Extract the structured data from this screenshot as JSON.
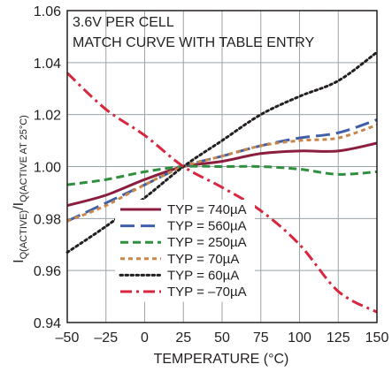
{
  "chart_data": {
    "type": "line",
    "title": "",
    "xlabel": "TEMPERATURE (°C)",
    "ylabel": "I",
    "ylabel_subscript_parts": [
      "Q(ACTIVE)",
      "/I",
      "Q(ACTIVE AT 25°C)"
    ],
    "annotations": [
      "3.6V PER CELL",
      "MATCH CURVE WITH TABLE ENTRY"
    ],
    "xlim": [
      -50,
      150
    ],
    "ylim": [
      0.94,
      1.06
    ],
    "x_ticks": [
      -50,
      -25,
      0,
      25,
      50,
      75,
      100,
      125,
      150
    ],
    "x_tick_labels": [
      "–50",
      "–25",
      "0",
      "25",
      "50",
      "75",
      "100",
      "125",
      "150"
    ],
    "y_ticks": [
      0.94,
      0.96,
      0.98,
      1.0,
      1.02,
      1.04,
      1.06
    ],
    "y_tick_labels": [
      "0.94",
      "0.96",
      "0.98",
      "1.00",
      "1.02",
      "1.04",
      "1.06"
    ],
    "grid": true,
    "legend_position": "bottom-center",
    "series": [
      {
        "name": "TYP = 740µA",
        "color": "#8b1e3f",
        "dash": "solid",
        "x": [
          -50,
          -25,
          0,
          25,
          50,
          75,
          100,
          125,
          150
        ],
        "y": [
          0.985,
          0.989,
          0.995,
          1.0,
          1.002,
          1.005,
          1.006,
          1.006,
          1.009
        ]
      },
      {
        "name": "TYP = 560µA",
        "color": "#3f5fa8",
        "dash": "long-dash",
        "x": [
          -50,
          -25,
          0,
          25,
          50,
          75,
          100,
          125,
          150
        ],
        "y": [
          0.979,
          0.986,
          0.993,
          1.0,
          1.004,
          1.008,
          1.011,
          1.013,
          1.018
        ]
      },
      {
        "name": "TYP = 250µA",
        "color": "#2f8f3e",
        "dash": "dash",
        "x": [
          -50,
          -25,
          0,
          25,
          50,
          75,
          100,
          125,
          150
        ],
        "y": [
          0.993,
          0.995,
          0.998,
          1.0,
          1.0,
          1.0,
          0.999,
          0.997,
          0.998
        ]
      },
      {
        "name": "TYP = 70µA",
        "color": "#c8874a",
        "dash": "short-dash",
        "x": [
          -50,
          -25,
          0,
          25,
          50,
          75,
          100,
          125,
          150
        ],
        "y": [
          0.979,
          0.985,
          0.993,
          1.0,
          1.004,
          1.008,
          1.01,
          1.011,
          1.016
        ]
      },
      {
        "name": "TYP = 60µA",
        "color": "#231f20",
        "dash": "dot",
        "x": [
          -50,
          -25,
          0,
          25,
          50,
          75,
          100,
          125,
          150
        ],
        "y": [
          0.967,
          0.977,
          0.988,
          1.0,
          1.01,
          1.02,
          1.027,
          1.033,
          1.044
        ]
      },
      {
        "name": "TYP = –70µA",
        "color": "#d7263d",
        "dash": "dash-dot",
        "x": [
          -50,
          -25,
          0,
          25,
          50,
          75,
          100,
          125,
          150
        ],
        "y": [
          1.036,
          1.022,
          1.012,
          1.0,
          0.992,
          0.983,
          0.97,
          0.952,
          0.944
        ]
      }
    ]
  }
}
